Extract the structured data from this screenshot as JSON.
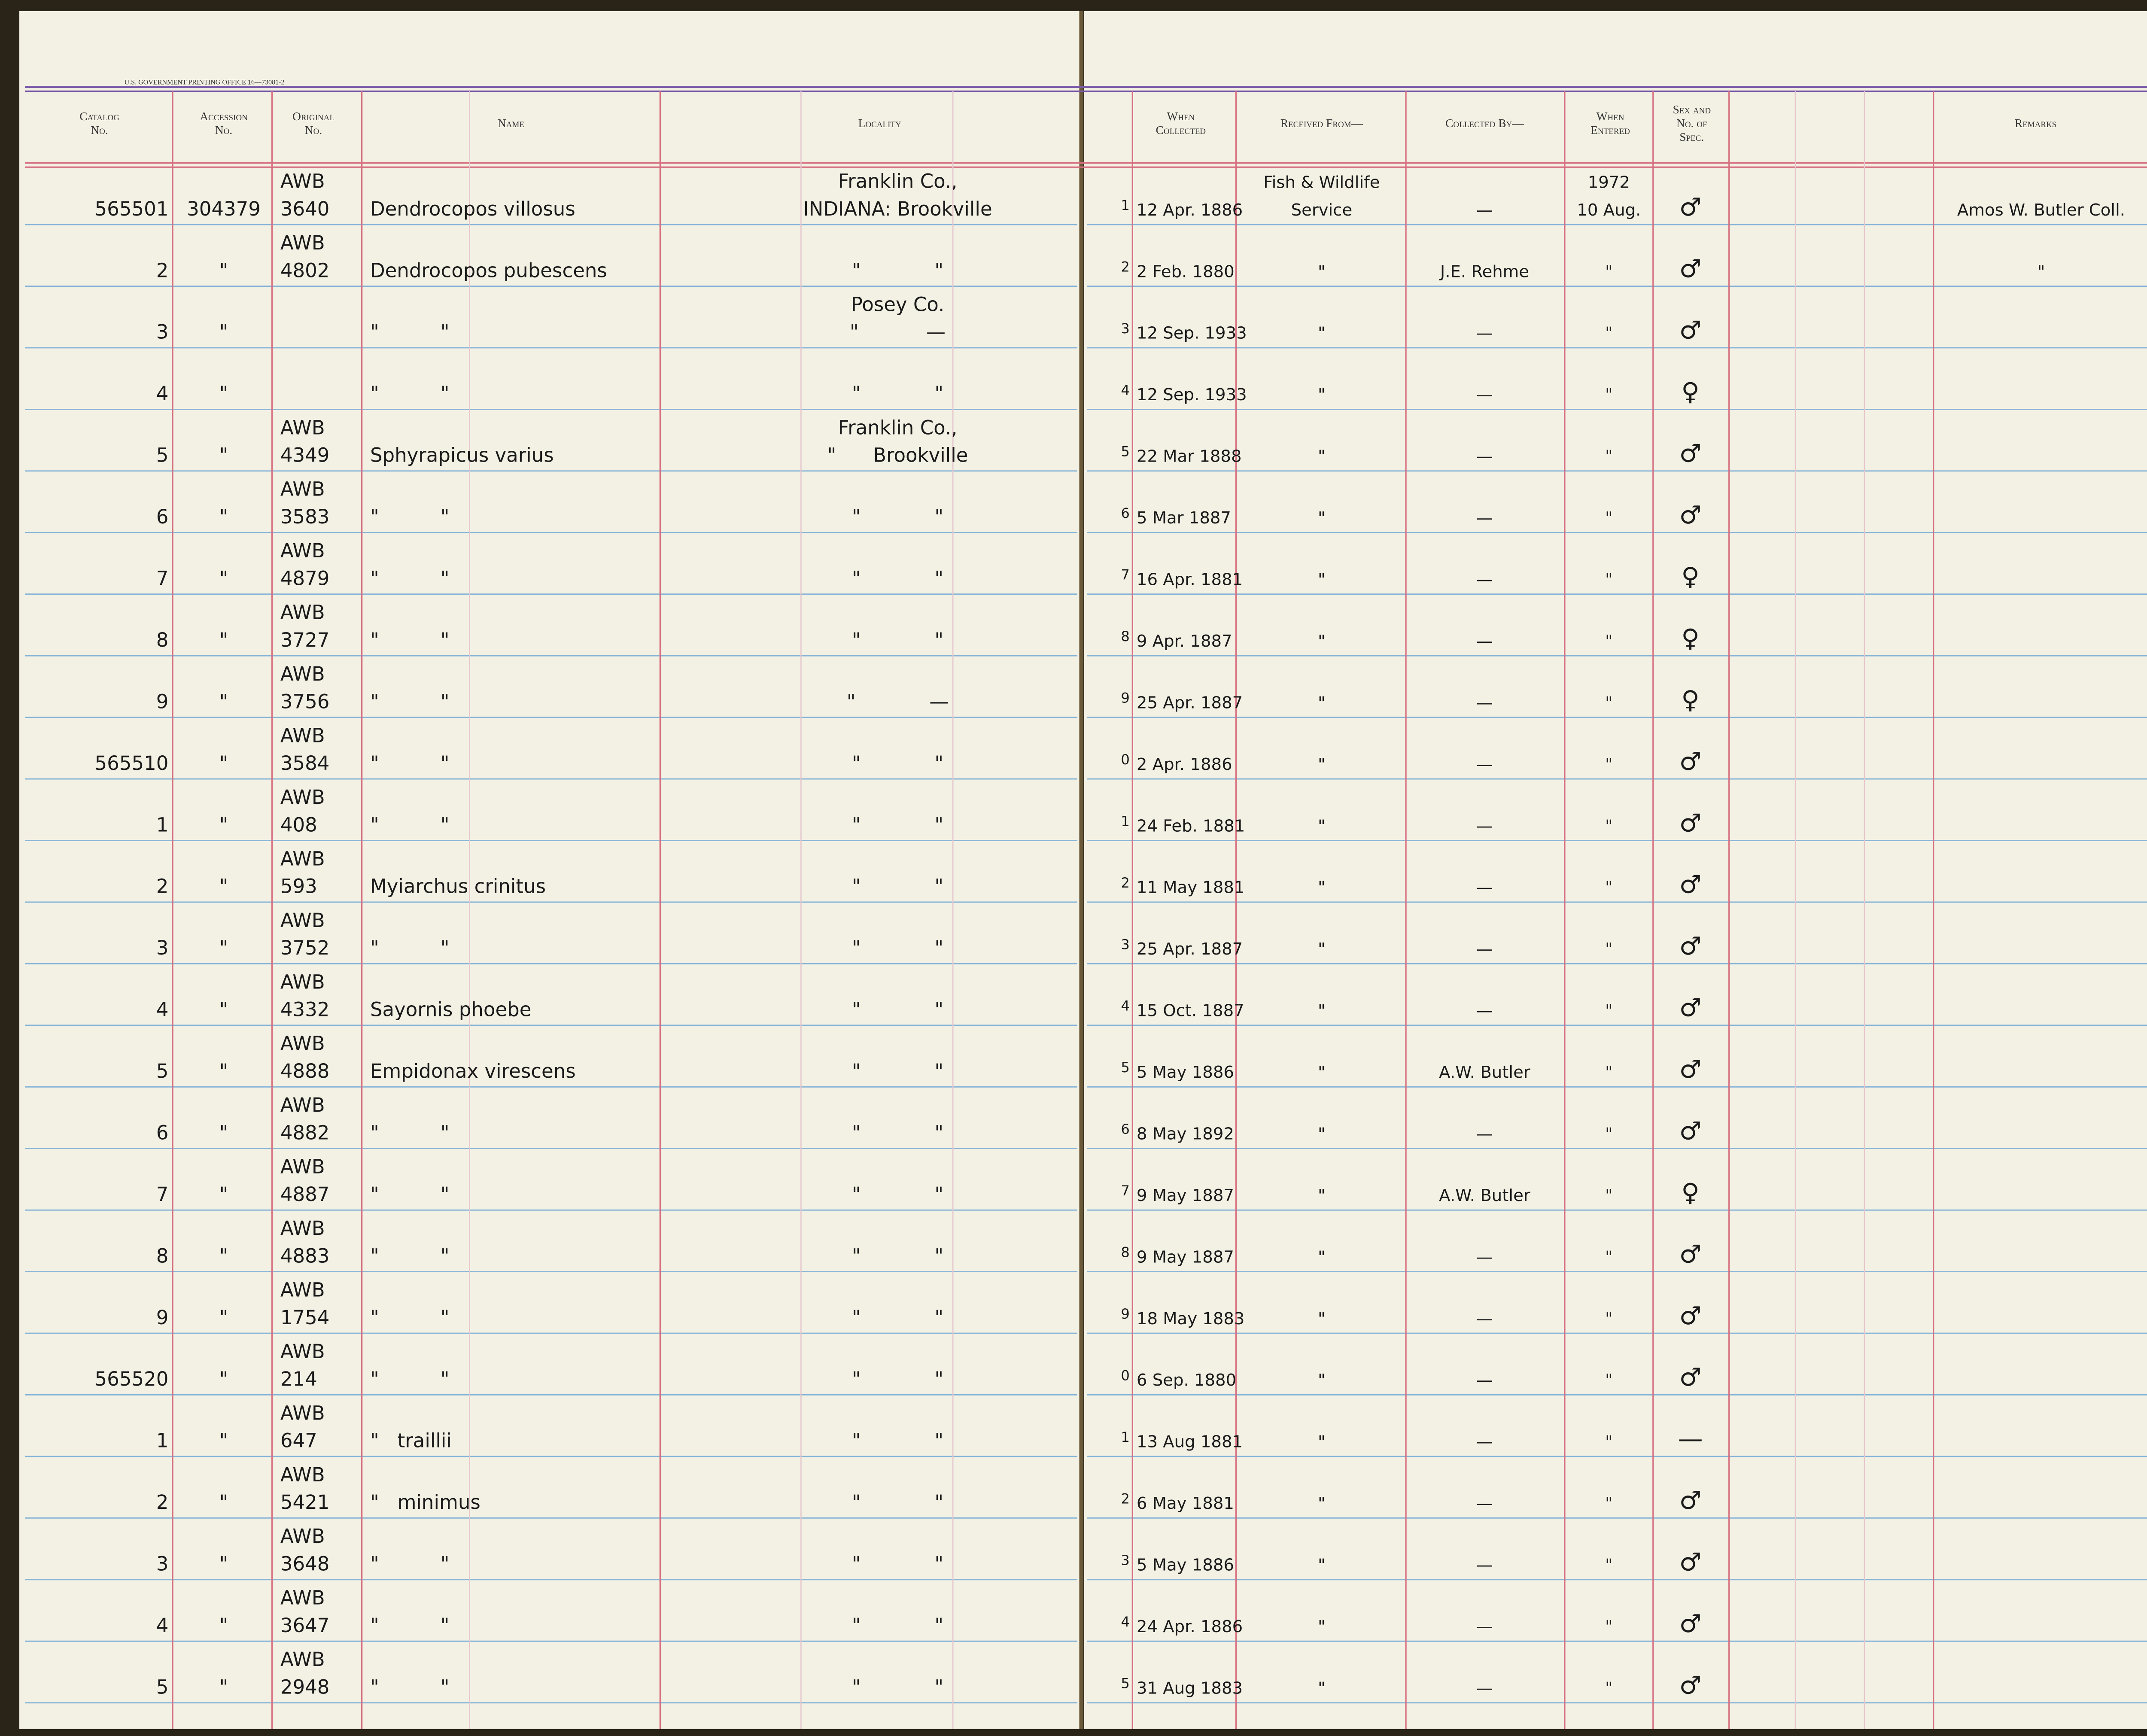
{
  "header": {
    "printer": "U.S. GOVERNMENT PRINTING OFFICE 16—73081-2",
    "columns": {
      "catalog": [
        "Catalog",
        "No."
      ],
      "accession": [
        "Accession",
        "No."
      ],
      "original": [
        "Original",
        "No."
      ],
      "name": [
        "Name"
      ],
      "locality": [
        "Locality"
      ],
      "collected": [
        "When",
        "Collected"
      ],
      "received": [
        "Received From—"
      ],
      "collected_by": [
        "Collected By—"
      ],
      "entered": [
        "When",
        "Entered"
      ],
      "sex": [
        "Sex and",
        "No. of",
        "Spec."
      ],
      "remarks": [
        "Remarks"
      ]
    }
  },
  "table": {
    "rows": [
      {
        "catalog": "565501",
        "accession": "304379",
        "original": [
          "AWB",
          "3640"
        ],
        "name": "Dendrocopos villosus",
        "locality": [
          "Franklin Co.,",
          "INDIANA: Brookville"
        ],
        "line": "1",
        "collected": "12 Apr. 1886",
        "received": [
          "Fish & Wildlife",
          "Service"
        ],
        "collected_by": "—",
        "entered": [
          "1972",
          "10 Aug."
        ],
        "sex": "♂",
        "remarks": "Amos W. Butler Coll."
      },
      {
        "catalog": "2",
        "accession": "\"",
        "original": [
          "AWB",
          "4802"
        ],
        "name": "Dendrocopos pubescens",
        "locality": "\"            \"",
        "line": "2",
        "collected": "2 Feb. 1880",
        "received": "\"",
        "collected_by": "J.E. Rehme",
        "entered": "\"",
        "sex": "♂",
        "remarks": "\""
      },
      {
        "catalog": "3",
        "accession": "\"",
        "name": "\"          \"",
        "locality": [
          "Posey Co.",
          "\"           —"
        ],
        "line": "3",
        "collected": "12 Sep. 1933",
        "received": "\"",
        "collected_by": "—",
        "entered": "\"",
        "sex": "♂"
      },
      {
        "catalog": "4",
        "accession": "\"",
        "name": "\"          \"",
        "locality": "\"            \"",
        "line": "4",
        "collected": "12 Sep. 1933",
        "received": "\"",
        "collected_by": "—",
        "entered": "\"",
        "sex": "♀"
      },
      {
        "catalog": "5",
        "accession": "\"",
        "original": [
          "AWB",
          "4349"
        ],
        "name": "Sphyrapicus varius",
        "locality": [
          "Franklin Co.,",
          "\"      Brookville"
        ],
        "line": "5",
        "collected": "22 Mar 1888",
        "received": "\"",
        "collected_by": "—",
        "entered": "\"",
        "sex": "♂"
      },
      {
        "catalog": "6",
        "accession": "\"",
        "original": [
          "AWB",
          "3583"
        ],
        "name": "\"          \"",
        "locality": "\"            \"",
        "line": "6",
        "collected": "5 Mar 1887",
        "received": "\"",
        "collected_by": "—",
        "entered": "\"",
        "sex": "♂"
      },
      {
        "catalog": "7",
        "accession": "\"",
        "original": [
          "AWB",
          "4879"
        ],
        "name": "\"          \"",
        "locality": "\"            \"",
        "line": "7",
        "collected": "16 Apr. 1881",
        "received": "\"",
        "collected_by": "—",
        "entered": "\"",
        "sex": "♀"
      },
      {
        "catalog": "8",
        "accession": "\"",
        "original": [
          "AWB",
          "3727"
        ],
        "name": "\"          \"",
        "locality": "\"            \"",
        "line": "8",
        "collected": "9 Apr. 1887",
        "received": "\"",
        "collected_by": "—",
        "entered": "\"",
        "sex": "♀"
      },
      {
        "catalog": "9",
        "accession": "\"",
        "original": [
          "AWB",
          "3756"
        ],
        "name": "\"          \"",
        "locality": "\"            —",
        "line": "9",
        "collected": "25 Apr. 1887",
        "received": "\"",
        "collected_by": "—",
        "entered": "\"",
        "sex": "♀"
      },
      {
        "catalog": "565510",
        "accession": "\"",
        "original": [
          "AWB",
          "3584"
        ],
        "name": "\"          \"",
        "locality": "\"            \"",
        "line": "0",
        "collected": "2 Apr. 1886",
        "received": "\"",
        "collected_by": "—",
        "entered": "\"",
        "sex": "♂"
      },
      {
        "catalog": "1",
        "accession": "\"",
        "original": [
          "AWB",
          "408"
        ],
        "name": "\"          \"",
        "locality": "\"            \"",
        "line": "1",
        "collected": "24 Feb. 1881",
        "received": "\"",
        "collected_by": "—",
        "entered": "\"",
        "sex": "♂"
      },
      {
        "catalog": "2",
        "accession": "\"",
        "original": [
          "AWB",
          "593"
        ],
        "name": "Myiarchus crinitus",
        "locality": "\"            \"",
        "line": "2",
        "collected": "11 May 1881",
        "received": "\"",
        "collected_by": "—",
        "entered": "\"",
        "sex": "♂"
      },
      {
        "catalog": "3",
        "accession": "\"",
        "original": [
          "AWB",
          "3752"
        ],
        "name": "\"          \"",
        "locality": "\"            \"",
        "line": "3",
        "collected": "25 Apr. 1887",
        "received": "\"",
        "collected_by": "—",
        "entered": "\"",
        "sex": "♂"
      },
      {
        "catalog": "4",
        "accession": "\"",
        "original": [
          "AWB",
          "4332"
        ],
        "name": "Sayornis phoebe",
        "locality": "\"            \"",
        "line": "4",
        "collected": "15 Oct. 1887",
        "received": "\"",
        "collected_by": "—",
        "entered": "\"",
        "sex": "♂"
      },
      {
        "catalog": "5",
        "accession": "\"",
        "original": [
          "AWB",
          "4888"
        ],
        "name": "Empidonax virescens",
        "locality": "\"            \"",
        "line": "5",
        "collected": "5 May 1886",
        "received": "\"",
        "collected_by": "A.W. Butler",
        "entered": "\"",
        "sex": "♂"
      },
      {
        "catalog": "6",
        "accession": "\"",
        "original": [
          "AWB",
          "4882"
        ],
        "name": "\"          \"",
        "locality": "\"            \"",
        "line": "6",
        "collected": "8 May 1892",
        "received": "\"",
        "collected_by": "—",
        "entered": "\"",
        "sex": "♂"
      },
      {
        "catalog": "7",
        "accession": "\"",
        "original": [
          "AWB",
          "4887"
        ],
        "name": "\"          \"",
        "locality": "\"            \"",
        "line": "7",
        "collected": "9 May 1887",
        "received": "\"",
        "collected_by": "A.W. Butler",
        "entered": "\"",
        "sex": "♀"
      },
      {
        "catalog": "8",
        "accession": "\"",
        "original": [
          "AWB",
          "4883"
        ],
        "name": "\"          \"",
        "locality": "\"            \"",
        "line": "8",
        "collected": "9 May 1887",
        "received": "\"",
        "collected_by": "—",
        "entered": "\"",
        "sex": "♂"
      },
      {
        "catalog": "9",
        "accession": "\"",
        "original": [
          "AWB",
          "1754"
        ],
        "name": "\"          \"",
        "locality": "\"            \"",
        "line": "9",
        "collected": "18 May 1883",
        "received": "\"",
        "collected_by": "—",
        "entered": "\"",
        "sex": "♂"
      },
      {
        "catalog": "565520",
        "accession": "\"",
        "original": [
          "AWB",
          "214"
        ],
        "name": "\"          \"",
        "locality": "\"            \"",
        "line": "0",
        "collected": "6 Sep. 1880",
        "received": "\"",
        "collected_by": "—",
        "entered": "\"",
        "sex": "♂"
      },
      {
        "catalog": "1",
        "accession": "\"",
        "original": [
          "AWB",
          "647"
        ],
        "name": "\"   traillii",
        "locality": "\"            \"",
        "line": "1",
        "collected": "13 Aug 1881",
        "received": "\"",
        "collected_by": "—",
        "entered": "\"",
        "sex": "—"
      },
      {
        "catalog": "2",
        "accession": "\"",
        "original": [
          "AWB",
          "5421"
        ],
        "name": "\"   minimus",
        "locality": "\"            \"",
        "line": "2",
        "collected": "6 May 1881",
        "received": "\"",
        "collected_by": "—",
        "entered": "\"",
        "sex": "♂"
      },
      {
        "catalog": "3",
        "accession": "\"",
        "original": [
          "AWB",
          "3648"
        ],
        "name": "\"          \"",
        "locality": "\"            \"",
        "line": "3",
        "collected": "5 May 1886",
        "received": "\"",
        "collected_by": "—",
        "entered": "\"",
        "sex": "♂"
      },
      {
        "catalog": "4",
        "accession": "\"",
        "original": [
          "AWB",
          "3647"
        ],
        "name": "\"          \"",
        "locality": "\"            \"",
        "line": "4",
        "collected": "24 Apr. 1886",
        "received": "\"",
        "collected_by": "—",
        "entered": "\"",
        "sex": "♂"
      },
      {
        "catalog": "5",
        "accession": "\"",
        "original": [
          "AWB",
          "2948"
        ],
        "name": "\"          \"",
        "locality": "\"            \"",
        "line": "5",
        "collected": "31 Aug 1883",
        "received": "\"",
        "collected_by": "—",
        "entered": "\"",
        "sex": "♂"
      }
    ]
  }
}
